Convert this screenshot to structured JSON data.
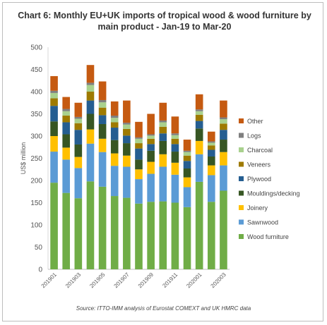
{
  "chart_data": {
    "type": "bar",
    "stacked": true,
    "title": "Chart 6: Monthly EU+UK imports of tropical wood & wood furniture by main product - Jan-19 to Mar-20",
    "ylabel": "US$ million",
    "xlabel": "",
    "ylim": [
      0,
      500
    ],
    "yticks": [
      0,
      50,
      100,
      150,
      200,
      250,
      300,
      350,
      400,
      450,
      500
    ],
    "grid": false,
    "legend_position": "right",
    "categories": [
      "201901",
      "201902",
      "201903",
      "201904",
      "201905",
      "201906",
      "201907",
      "201908",
      "201909",
      "201910",
      "201911",
      "201912",
      "202001",
      "202002",
      "202003"
    ],
    "x_tick_labels": [
      "201901",
      "",
      "201903",
      "",
      "201905",
      "",
      "201907",
      "",
      "201909",
      "",
      "201911",
      "",
      "202001",
      "",
      "202003"
    ],
    "series": [
      {
        "name": "Wood furniture",
        "color": "#70ad47",
        "values": [
          195,
          172,
          160,
          198,
          186,
          165,
          161,
          148,
          152,
          153,
          150,
          140,
          197,
          152,
          177
        ]
      },
      {
        "name": "Sawnwood",
        "color": "#5b9bd5",
        "values": [
          70,
          75,
          68,
          85,
          78,
          68,
          70,
          55,
          63,
          78,
          63,
          45,
          62,
          60,
          57
        ]
      },
      {
        "name": "Joinery",
        "color": "#ffc000",
        "values": [
          35,
          27,
          25,
          32,
          30,
          28,
          25,
          22,
          27,
          28,
          27,
          22,
          30,
          22,
          30
        ]
      },
      {
        "name": "Mouldings/decking",
        "color": "#375623",
        "values": [
          33,
          30,
          28,
          35,
          33,
          30,
          28,
          22,
          25,
          30,
          25,
          20,
          28,
          20,
          28
        ]
      },
      {
        "name": "Plywood",
        "color": "#255e91",
        "values": [
          35,
          27,
          33,
          30,
          20,
          28,
          17,
          25,
          15,
          17,
          17,
          17,
          17,
          15,
          22
        ]
      },
      {
        "name": "Veneers",
        "color": "#9e7a00",
        "values": [
          17,
          15,
          15,
          20,
          17,
          12,
          15,
          12,
          12,
          15,
          12,
          12,
          14,
          10,
          14
        ]
      },
      {
        "name": "Charcoal",
        "color": "#a9d18e",
        "values": [
          12,
          10,
          10,
          15,
          12,
          10,
          10,
          10,
          7,
          10,
          8,
          8,
          8,
          6,
          10
        ]
      },
      {
        "name": "Logs",
        "color": "#7f7f7f",
        "values": [
          5,
          5,
          4,
          5,
          5,
          5,
          4,
          3,
          3,
          4,
          4,
          3,
          4,
          3,
          4
        ]
      },
      {
        "name": "Other",
        "color": "#c55a11",
        "values": [
          33,
          27,
          32,
          40,
          42,
          32,
          50,
          35,
          46,
          40,
          38,
          25,
          34,
          22,
          38
        ]
      }
    ],
    "source": "Source: ITTO-IMM analysis of Eurostat COMEXT and UK HMRC data"
  }
}
